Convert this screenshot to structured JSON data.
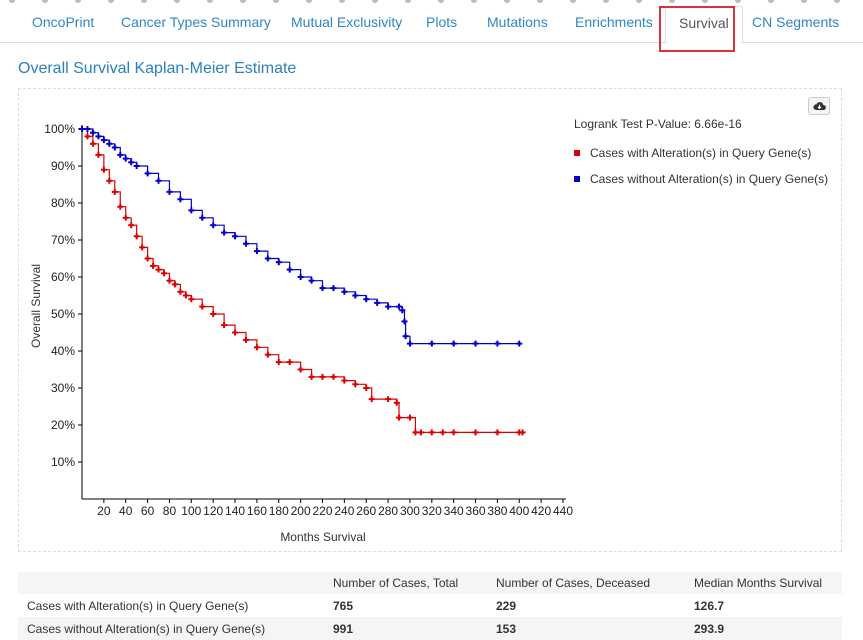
{
  "tabs": [
    {
      "label": "OncoPrint",
      "active": false
    },
    {
      "label": "Cancer Types Summary",
      "active": false
    },
    {
      "label": "Mutual Exclusivity",
      "active": false
    },
    {
      "label": "Plots",
      "active": false
    },
    {
      "label": "Mutations",
      "active": false
    },
    {
      "label": "Enrichments",
      "active": false
    },
    {
      "label": "Survival",
      "active": true
    },
    {
      "label": "CN Segments",
      "active": false
    }
  ],
  "heading": "Overall Survival Kaplan-Meier Estimate",
  "download_icon": "cloud-download-icon",
  "logrank_text": "Logrank Test P-Value: 6.66e-16",
  "colors": {
    "altered": "#dc0000",
    "unaltered": "#0000c8",
    "accent": "#2a7fbf",
    "highlight": "#d9323a"
  },
  "chart_data": {
    "type": "line",
    "xlabel": "Months Survival",
    "ylabel": "Overall Survival",
    "xlim": [
      0,
      440
    ],
    "ylim": [
      0,
      100
    ],
    "x_ticks": [
      20,
      40,
      60,
      80,
      100,
      120,
      140,
      160,
      180,
      200,
      220,
      240,
      260,
      280,
      300,
      320,
      340,
      360,
      380,
      400,
      420,
      440
    ],
    "y_ticks": [
      10,
      20,
      30,
      40,
      50,
      60,
      70,
      80,
      90,
      100
    ],
    "y_tick_labels": [
      "10%",
      "20%",
      "30%",
      "40%",
      "50%",
      "60%",
      "70%",
      "80%",
      "90%",
      "100%"
    ],
    "legend_position": "top-right",
    "series": [
      {
        "name": "Cases with Alteration(s) in Query Gene(s)",
        "color": "#dc0000",
        "x": [
          0,
          5,
          10,
          15,
          20,
          25,
          30,
          35,
          40,
          45,
          50,
          55,
          60,
          65,
          70,
          75,
          80,
          85,
          90,
          95,
          100,
          110,
          120,
          130,
          140,
          150,
          160,
          170,
          180,
          190,
          200,
          210,
          220,
          230,
          240,
          250,
          260,
          265,
          280,
          288,
          290,
          300,
          305,
          310,
          320,
          330,
          340,
          360,
          380,
          400,
          403
        ],
        "y": [
          100,
          98,
          96,
          93,
          89,
          86,
          83,
          79,
          76,
          74,
          71,
          68,
          65,
          63,
          62,
          61,
          59,
          58,
          56,
          55,
          54,
          52,
          50,
          47,
          45,
          43,
          41,
          39,
          37,
          37,
          35,
          33,
          33,
          33,
          32,
          31,
          30,
          27,
          27,
          26,
          22,
          22,
          18,
          18,
          18,
          18,
          18,
          18,
          18,
          18,
          18
        ]
      },
      {
        "name": "Cases without Alteration(s) in Query Gene(s)",
        "color": "#0000c8",
        "x": [
          0,
          5,
          10,
          15,
          20,
          25,
          30,
          35,
          40,
          45,
          50,
          60,
          70,
          80,
          90,
          100,
          110,
          120,
          130,
          140,
          150,
          160,
          170,
          180,
          190,
          200,
          210,
          220,
          230,
          240,
          250,
          260,
          270,
          280,
          290,
          293,
          295,
          296,
          300,
          320,
          340,
          360,
          380,
          400
        ],
        "y": [
          100,
          100,
          99,
          98,
          97,
          96,
          95,
          93,
          92,
          91,
          90,
          88,
          86,
          83,
          81,
          78,
          76,
          74,
          72,
          71,
          69,
          67,
          65,
          64,
          62,
          60,
          59,
          57,
          57,
          56,
          55,
          54,
          53,
          52,
          52,
          51,
          48,
          44,
          42,
          42,
          42,
          42,
          42,
          42
        ]
      }
    ]
  },
  "summary_table": {
    "headers": [
      "",
      "Number of Cases, Total",
      "Number of Cases, Deceased",
      "Median Months Survival"
    ],
    "rows": [
      [
        "Cases with Alteration(s) in Query Gene(s)",
        "765",
        "229",
        "126.7"
      ],
      [
        "Cases without Alteration(s) in Query Gene(s)",
        "991",
        "153",
        "293.9"
      ]
    ]
  }
}
